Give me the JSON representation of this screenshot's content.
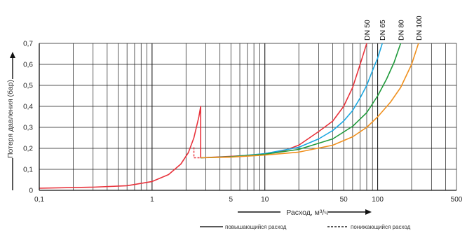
{
  "chart_data": {
    "type": "line",
    "xlabel": "Расход, м³/ч",
    "ylabel": "Потеря давления (бар)",
    "x_scale": "log",
    "xlim": [
      0.1,
      500
    ],
    "ylim": [
      0,
      0.7
    ],
    "x_ticks": [
      {
        "v": 0.1,
        "label": "0,1"
      },
      {
        "v": 1,
        "label": "1"
      },
      {
        "v": 5,
        "label": "5"
      },
      {
        "v": 10,
        "label": "10"
      },
      {
        "v": 50,
        "label": "50"
      },
      {
        "v": 100,
        "label": "100"
      },
      {
        "v": 500,
        "label": "500"
      }
    ],
    "y_ticks": [
      {
        "v": 0,
        "label": "0"
      },
      {
        "v": 0.1,
        "label": "0,1"
      },
      {
        "v": 0.2,
        "label": "0,2"
      },
      {
        "v": 0.3,
        "label": "0,3"
      },
      {
        "v": 0.4,
        "label": "0,4"
      },
      {
        "v": 0.5,
        "label": "0,5"
      },
      {
        "v": 0.6,
        "label": "0,6"
      },
      {
        "v": 0.7,
        "label": "0,7"
      }
    ],
    "grid": true,
    "series": [
      {
        "name": "DN 50",
        "color": "#e8333c",
        "x": [
          0.1,
          0.3,
          0.6,
          1.0,
          1.4,
          1.8,
          2.1,
          2.35,
          2.6,
          2.7,
          2.7,
          3,
          5,
          8,
          10,
          15,
          20,
          30,
          40,
          50,
          60,
          70,
          80
        ],
        "y": [
          0.01,
          0.015,
          0.022,
          0.042,
          0.075,
          0.125,
          0.18,
          0.25,
          0.35,
          0.4,
          0.155,
          0.156,
          0.162,
          0.168,
          0.175,
          0.19,
          0.215,
          0.28,
          0.33,
          0.4,
          0.49,
          0.6,
          0.7
        ]
      },
      {
        "name": "DN 65",
        "color": "#1ba7e0",
        "x": [
          2.7,
          5,
          10,
          20,
          30,
          40,
          50,
          60,
          70,
          80,
          90,
          100,
          110
        ],
        "y": [
          0.155,
          0.16,
          0.175,
          0.205,
          0.245,
          0.285,
          0.33,
          0.38,
          0.44,
          0.5,
          0.57,
          0.63,
          0.7
        ]
      },
      {
        "name": "DN 80",
        "color": "#1f9a3b",
        "x": [
          2.7,
          5,
          10,
          20,
          40,
          60,
          80,
          100,
          120,
          140,
          160
        ],
        "y": [
          0.155,
          0.16,
          0.172,
          0.195,
          0.245,
          0.305,
          0.37,
          0.45,
          0.53,
          0.61,
          0.7
        ]
      },
      {
        "name": "DN 100",
        "color": "#f0901e",
        "x": [
          2.7,
          5,
          10,
          20,
          40,
          60,
          80,
          100,
          130,
          160,
          200,
          230
        ],
        "y": [
          0.155,
          0.158,
          0.168,
          0.182,
          0.215,
          0.255,
          0.3,
          0.35,
          0.42,
          0.49,
          0.6,
          0.7
        ]
      }
    ],
    "dashed_segment": {
      "color": "#e8333c",
      "x": [
        2.35,
        2.7
      ],
      "y": [
        0.155,
        0.155
      ]
    },
    "legend": [
      {
        "label": "повышающийся расход",
        "style": "solid"
      },
      {
        "label": "понижающийся расход",
        "style": "dashed"
      }
    ]
  }
}
